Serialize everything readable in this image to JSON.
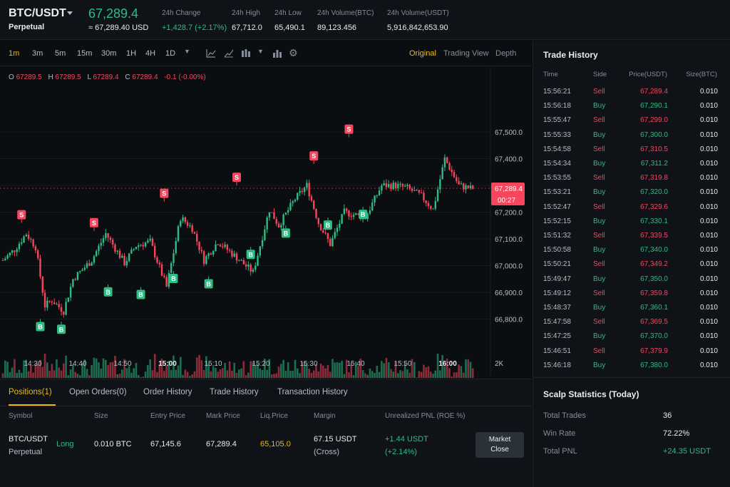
{
  "header": {
    "symbol": "BTC/USDT",
    "perpetual": "Perpetual",
    "last_price": "67,289.4",
    "mark_price": "≈ 67,289.40 USD",
    "stats": [
      {
        "label": "24h Change",
        "value": "+1,428.7 (+2.17%)"
      },
      {
        "label": "24h High",
        "value": "67,712.0"
      },
      {
        "label": "24h Low",
        "value": "65,490.1"
      },
      {
        "label": "24h Volume(BTC)",
        "value": "89,123.456"
      },
      {
        "label": "24h Volume(USDT)",
        "value": "5,916,842,653.90"
      }
    ]
  },
  "toolbar": {
    "timeframes": [
      "1m",
      "3m",
      "5m",
      "15m",
      "30m",
      "1H",
      "4H",
      "1D"
    ],
    "active_timeframe": "1m",
    "views": [
      "Original",
      "Trading View",
      "Depth"
    ],
    "active_view": "Original"
  },
  "ohlc": {
    "o_label": "O",
    "o": "67289.5",
    "h_label": "H",
    "h": "67289.5",
    "l_label": "L",
    "l": "67289.4",
    "c_label": "C",
    "c": "67289.4",
    "change": "-0.1 (-0.00%)"
  },
  "chart_data": {
    "type": "candlestick",
    "y_ticks": [
      "67,500.0",
      "67,400.0",
      "67,300.0",
      "67,200.0",
      "67,100.0",
      "67,000.0",
      "66,900.0",
      "66,800.0"
    ],
    "ylim": [
      66740,
      67535
    ],
    "x_ticks": [
      "14:30",
      "14:40",
      "14:50",
      "15:00",
      "15:10",
      "15:20",
      "15:30",
      "15:40",
      "15:50",
      "16:00"
    ],
    "bold_x_ticks": [
      "15:00",
      "16:00"
    ],
    "current_price_label": "67,289.4",
    "countdown": "00:27",
    "volume_ticks": [
      "2K",
      "0"
    ],
    "price_anchors": [
      [
        0,
        67020
      ],
      [
        5,
        67060
      ],
      [
        10,
        67120
      ],
      [
        14,
        67070
      ],
      [
        18,
        66850
      ],
      [
        21,
        66870
      ],
      [
        26,
        66830
      ],
      [
        30,
        66950
      ],
      [
        38,
        67020
      ],
      [
        44,
        67120
      ],
      [
        52,
        67010
      ],
      [
        57,
        67075
      ],
      [
        63,
        67090
      ],
      [
        70,
        66920
      ],
      [
        76,
        67180
      ],
      [
        81,
        67140
      ],
      [
        86,
        67020
      ],
      [
        92,
        67090
      ],
      [
        100,
        67030
      ],
      [
        107,
        66975
      ],
      [
        114,
        67210
      ],
      [
        118,
        67150
      ],
      [
        125,
        67250
      ],
      [
        130,
        67300
      ],
      [
        135,
        67160
      ],
      [
        140,
        67080
      ],
      [
        146,
        67200
      ],
      [
        155,
        67180
      ],
      [
        162,
        67300
      ],
      [
        168,
        67300
      ],
      [
        173,
        67290
      ],
      [
        179,
        67260
      ],
      [
        184,
        67210
      ],
      [
        189,
        67400
      ],
      [
        195,
        67300
      ],
      [
        200,
        67289
      ]
    ],
    "markers": [
      {
        "label": "S",
        "type": "sell",
        "time_index": 8,
        "price": 67160
      },
      {
        "label": "B",
        "type": "buy",
        "time_index": 16,
        "price": 66800
      },
      {
        "label": "B",
        "type": "buy",
        "time_index": 25,
        "price": 66790
      },
      {
        "label": "S",
        "type": "sell",
        "time_index": 39,
        "price": 67130
      },
      {
        "label": "B",
        "type": "buy",
        "time_index": 45,
        "price": 66930
      },
      {
        "label": "B",
        "type": "buy",
        "time_index": 59,
        "price": 66920
      },
      {
        "label": "S",
        "type": "sell",
        "time_index": 69,
        "price": 67240
      },
      {
        "label": "B",
        "type": "buy",
        "time_index": 73,
        "price": 66980
      },
      {
        "label": "B",
        "type": "buy",
        "time_index": 88,
        "price": 66960
      },
      {
        "label": "S",
        "type": "sell",
        "time_index": 100,
        "price": 67300
      },
      {
        "label": "B",
        "type": "buy",
        "time_index": 106,
        "price": 67070
      },
      {
        "label": "B",
        "type": "buy",
        "time_index": 121,
        "price": 67150
      },
      {
        "label": "S",
        "type": "sell",
        "time_index": 133,
        "price": 67380
      },
      {
        "label": "B",
        "type": "buy",
        "time_index": 139,
        "price": 67180
      },
      {
        "label": "S",
        "type": "sell",
        "time_index": 148,
        "price": 67480
      },
      {
        "label": "B",
        "type": "buy",
        "time_index": 154,
        "price": 67220
      }
    ]
  },
  "trade_history": {
    "title": "Trade History",
    "headers": [
      "Time",
      "Side",
      "Price(USDT)",
      "Size(BTC)"
    ],
    "rows": [
      [
        "15:56:21",
        "Sell",
        "67,289.4",
        "0.010"
      ],
      [
        "15:56:18",
        "Buy",
        "67,290.1",
        "0.010"
      ],
      [
        "15:55:47",
        "Sell",
        "67,299.0",
        "0.010"
      ],
      [
        "15:55:33",
        "Buy",
        "67,300.0",
        "0.010"
      ],
      [
        "15:54:58",
        "Sell",
        "67,310.5",
        "0.010"
      ],
      [
        "15:54:34",
        "Buy",
        "67,311.2",
        "0.010"
      ],
      [
        "15:53:55",
        "Sell",
        "67,319.8",
        "0.010"
      ],
      [
        "15:53:21",
        "Buy",
        "67,320.0",
        "0.010"
      ],
      [
        "15:52:47",
        "Sell",
        "67,329.6",
        "0.010"
      ],
      [
        "15:52:15",
        "Buy",
        "67,330.1",
        "0.010"
      ],
      [
        "15:51:32",
        "Sell",
        "67,339.5",
        "0.010"
      ],
      [
        "15:50:58",
        "Buy",
        "67,340.0",
        "0.010"
      ],
      [
        "15:50:21",
        "Sell",
        "67,349.2",
        "0.010"
      ],
      [
        "15:49:47",
        "Buy",
        "67,350.0",
        "0.010"
      ],
      [
        "15:49:12",
        "Sell",
        "67,359.8",
        "0.010"
      ],
      [
        "15:48:37",
        "Buy",
        "67,360.1",
        "0.010"
      ],
      [
        "15:47:58",
        "Sell",
        "67,369.5",
        "0.010"
      ],
      [
        "15:47:25",
        "Buy",
        "67,370.0",
        "0.010"
      ],
      [
        "15:46:51",
        "Sell",
        "67,379.9",
        "0.010"
      ],
      [
        "15:46:18",
        "Buy",
        "67,380.0",
        "0.010"
      ]
    ]
  },
  "scalp_stats": {
    "title": "Scalp Statistics (Today)",
    "total_trades_label": "Total Trades",
    "total_trades": "36",
    "win_rate_label": "Win Rate",
    "win_rate": "72.22%",
    "total_pnl_label": "Total PNL",
    "total_pnl": "+24.35 USDT"
  },
  "bottom": {
    "tabs": [
      "Positions(1)",
      "Open Orders(0)",
      "Order History",
      "Trade History",
      "Transaction History"
    ],
    "headers": [
      "Symbol",
      "Size",
      "Entry Price",
      "Mark Price",
      "Liq.Price",
      "Margin",
      "Unrealized PNL (ROE %)"
    ],
    "position": {
      "symbol": "BTC/USDT",
      "type": "Perpetual",
      "side": "Long",
      "size": "0.010 BTC",
      "entry": "67,145.6",
      "mark": "67,289.4",
      "liq": "65,105.0",
      "margin": "67.15 USDT",
      "margin_mode": "(Cross)",
      "pnl": "+1.44 USDT",
      "roe": "(+2.14%)"
    },
    "close_button": [
      "Market",
      "Close"
    ]
  },
  "colors": {
    "up": "#2ebd85",
    "down": "#f6465d",
    "accent": "#f0b90b",
    "background": "#0b0e11"
  }
}
